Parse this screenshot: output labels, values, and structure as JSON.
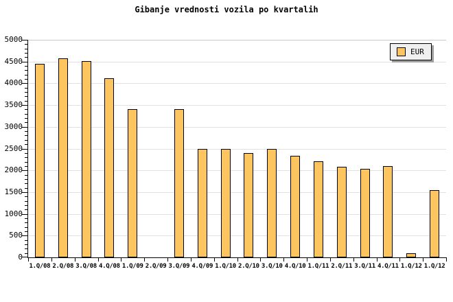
{
  "chart_data": {
    "type": "bar",
    "title": "Gibanje vrednosti vozila po kvartalih",
    "categories": [
      "1.Q/08",
      "2.Q/08",
      "3.Q/08",
      "4.Q/08",
      "1.Q/09",
      "2.Q/09",
      "3.Q/09",
      "4.Q/09",
      "1.Q/10",
      "2.Q/10",
      "3.Q/10",
      "4.Q/10",
      "1.Q/11",
      "2.Q/11",
      "3.Q/11",
      "4.Q/11",
      "1.Q/12",
      "1.Q/12"
    ],
    "series": [
      {
        "name": "EUR",
        "values": [
          4450,
          4570,
          4510,
          4110,
          3400,
          0,
          3400,
          2490,
          2490,
          2390,
          2490,
          2340,
          2210,
          2080,
          2030,
          2090,
          90,
          1550
        ]
      }
    ],
    "xlabel": "",
    "ylabel": "",
    "ylim": [
      0,
      5000
    ],
    "y_major_step": 500,
    "y_minor_step": 100,
    "y_tick_labels": [
      "0",
      "500",
      "1000",
      "1500",
      "2000",
      "2500",
      "3000",
      "3500",
      "4000",
      "4500",
      "5000"
    ],
    "grid": true,
    "legend": {
      "label": "EUR",
      "position": "top-right"
    },
    "colors": {
      "background": "#FFFFFF",
      "bar_fill": "#FDC55F",
      "bar_border": "#000000",
      "grid": "#E0E0E0",
      "axis": "#000000",
      "frame_top": "#C8C8C8",
      "legend_bg": "#F0F0F0",
      "legend_shadow": "#9E9E9E",
      "text": "#000000"
    }
  }
}
